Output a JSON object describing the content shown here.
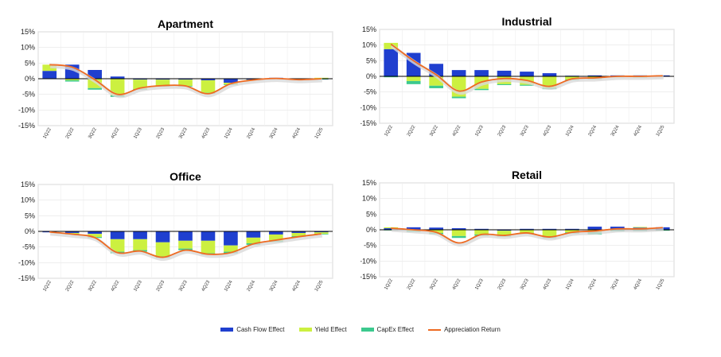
{
  "legend": [
    {
      "name": "Cash Flow Effect",
      "color": "#1f3fcf"
    },
    {
      "name": "Yield Effect",
      "color": "#ccf040"
    },
    {
      "name": "CapEx Effect",
      "color": "#3cc98e"
    },
    {
      "name": "Appreciation Return",
      "color": "#ee6a22"
    }
  ],
  "chart_data": [
    {
      "type": "bar",
      "title": "Apartment",
      "categories": [
        "1Q22",
        "2Q22",
        "3Q22",
        "4Q22",
        "1Q23",
        "2Q23",
        "3Q23",
        "4Q23",
        "1Q24",
        "2Q24",
        "3Q24",
        "4Q24",
        "1Q25"
      ],
      "yticks": [
        "15%",
        "10%",
        "5%",
        "0%",
        "-5%",
        "-10%",
        "-15%"
      ],
      "ylim": [
        -15,
        15
      ],
      "series": [
        {
          "name": "Cash Flow Effect",
          "values": [
            2.5,
            4.5,
            2.8,
            0.7,
            -0.3,
            -0.3,
            -0.3,
            -0.5,
            -1.3,
            -0.3,
            0.3,
            -0.2,
            -0.2
          ]
        },
        {
          "name": "Yield Effect",
          "values": [
            2.0,
            -0.5,
            -3.0,
            -5.3,
            -3.0,
            -2.0,
            -2.0,
            -4.0,
            -0.5,
            0.0,
            0.0,
            0.0,
            0.3
          ]
        },
        {
          "name": "CapEx Effect",
          "values": [
            0.0,
            -0.4,
            -0.5,
            -0.5,
            -0.2,
            -0.2,
            -0.2,
            -0.3,
            -0.2,
            -0.2,
            -0.1,
            -0.1,
            -0.1
          ]
        },
        {
          "name": "Appreciation Return",
          "values": [
            4.5,
            3.7,
            -0.3,
            -5.0,
            -3.0,
            -2.2,
            -2.3,
            -4.8,
            -1.6,
            -0.4,
            0.1,
            -0.3,
            0.0
          ]
        }
      ]
    },
    {
      "type": "bar",
      "title": "Industrial",
      "categories": [
        "1Q22",
        "2Q22",
        "3Q22",
        "4Q22",
        "1Q23",
        "2Q23",
        "3Q23",
        "4Q23",
        "1Q24",
        "2Q24",
        "3Q24",
        "4Q24",
        "1Q25"
      ],
      "yticks": [
        "15%",
        "10%",
        "5%",
        "0%",
        "-5%",
        "-10%",
        "-15%"
      ],
      "ylim": [
        -15,
        15
      ],
      "series": [
        {
          "name": "Cash Flow Effect",
          "values": [
            8.7,
            7.5,
            4.0,
            2.0,
            2.0,
            1.8,
            1.5,
            1.0,
            0.2,
            0.3,
            0.3,
            0.3,
            0.3
          ]
        },
        {
          "name": "Yield Effect",
          "values": [
            2.0,
            -1.5,
            -3.0,
            -6.5,
            -4.0,
            -2.5,
            -2.7,
            -3.7,
            -1.0,
            -0.7,
            -0.2,
            -0.3,
            0.0
          ]
        },
        {
          "name": "CapEx Effect",
          "values": [
            -0.3,
            -1.0,
            -0.8,
            -0.5,
            -0.4,
            -0.3,
            -0.3,
            -0.4,
            -0.2,
            -0.2,
            -0.1,
            -0.1,
            -0.1
          ]
        },
        {
          "name": "Appreciation Return",
          "values": [
            10.3,
            5.0,
            0.5,
            -4.7,
            -1.8,
            -0.7,
            -1.3,
            -3.2,
            -0.8,
            -0.5,
            0.0,
            0.0,
            0.2
          ]
        }
      ]
    },
    {
      "type": "bar",
      "title": "Office",
      "categories": [
        "1Q22",
        "2Q22",
        "3Q22",
        "4Q22",
        "1Q23",
        "2Q23",
        "3Q23",
        "4Q23",
        "1Q24",
        "2Q24",
        "3Q24",
        "4Q24",
        "1Q25"
      ],
      "yticks": [
        "15%",
        "10%",
        "5%",
        "0%",
        "-5%",
        "-10%",
        "-15%"
      ],
      "ylim": [
        -15,
        15
      ],
      "series": [
        {
          "name": "Cash Flow Effect",
          "values": [
            -0.3,
            -0.5,
            -0.8,
            -2.5,
            -2.5,
            -3.5,
            -3.0,
            -3.0,
            -4.5,
            -2.0,
            -1.0,
            -0.5,
            -0.3
          ]
        },
        {
          "name": "Yield Effect",
          "values": [
            0.0,
            -0.3,
            -1.0,
            -4.0,
            -3.5,
            -4.5,
            -2.5,
            -4.0,
            -2.0,
            -1.8,
            -2.0,
            -1.0,
            -0.5
          ]
        },
        {
          "name": "CapEx Effect",
          "values": [
            0.0,
            -0.2,
            -0.3,
            -0.5,
            -0.5,
            -0.5,
            -0.5,
            -0.5,
            -0.5,
            -0.5,
            -0.4,
            -0.3,
            -0.2
          ]
        },
        {
          "name": "Appreciation Return",
          "values": [
            -0.2,
            -0.9,
            -2.0,
            -6.8,
            -6.3,
            -8.3,
            -6.0,
            -7.3,
            -6.8,
            -4.0,
            -2.8,
            -1.7,
            -0.8
          ]
        }
      ]
    },
    {
      "type": "bar",
      "title": "Retail",
      "categories": [
        "1Q22",
        "2Q22",
        "3Q22",
        "4Q22",
        "1Q23",
        "2Q23",
        "3Q23",
        "4Q23",
        "1Q24",
        "2Q24",
        "3Q24",
        "4Q24",
        "1Q25"
      ],
      "yticks": [
        "15%",
        "10%",
        "5%",
        "0%",
        "-5%",
        "-10%",
        "-15%"
      ],
      "ylim": [
        -15,
        15
      ],
      "series": [
        {
          "name": "Cash Flow Effect",
          "values": [
            0.5,
            0.8,
            0.7,
            0.5,
            0.3,
            -0.3,
            0.3,
            0.3,
            0.3,
            1.0,
            1.0,
            0.7,
            0.8
          ]
        },
        {
          "name": "Yield Effect",
          "values": [
            0.3,
            -0.3,
            -1.0,
            -2.0,
            -1.5,
            -1.5,
            -1.0,
            -2.3,
            -0.8,
            -0.7,
            0.0,
            0.2,
            0.0
          ]
        },
        {
          "name": "CapEx Effect",
          "values": [
            -0.2,
            -0.4,
            -0.4,
            -0.6,
            -0.4,
            -0.4,
            -0.3,
            -0.4,
            -0.4,
            -0.8,
            -0.5,
            -0.4,
            -0.3
          ]
        },
        {
          "name": "Appreciation Return",
          "values": [
            0.5,
            0.0,
            -0.8,
            -4.2,
            -1.5,
            -1.8,
            -1.0,
            -2.3,
            -0.8,
            -0.4,
            0.3,
            0.3,
            0.7
          ]
        }
      ]
    }
  ]
}
